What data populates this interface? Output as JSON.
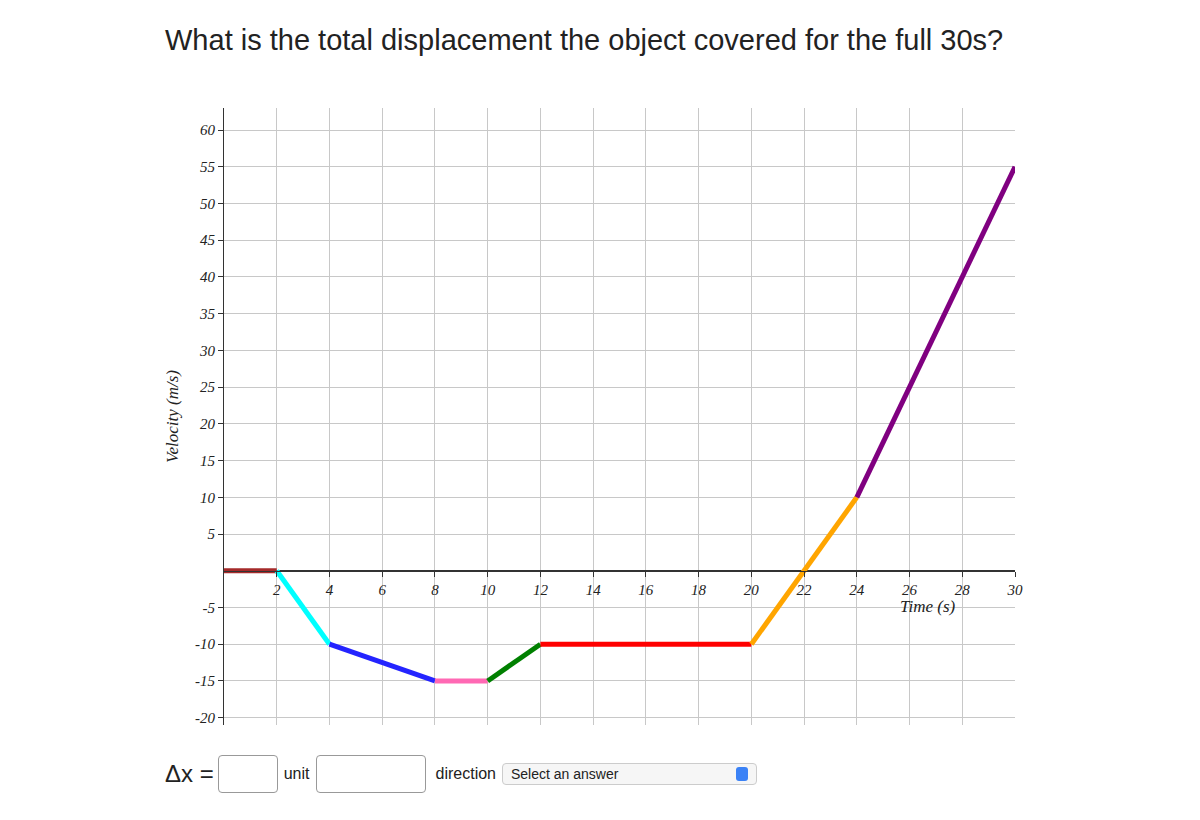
{
  "question": "What is the total displacement the object covered for the full 30s?",
  "answer_form": {
    "delta_label": "Δx =",
    "unit_label": "unit",
    "direction_label": "direction",
    "select_text": "Select an answer"
  },
  "chart_data": {
    "type": "line",
    "x_label": "Time (s)",
    "y_label": "Velocity (m/s)",
    "xlim": [
      0,
      30
    ],
    "ylim": [
      -21,
      63
    ],
    "xticks": [
      2,
      4,
      6,
      8,
      10,
      12,
      14,
      16,
      18,
      20,
      22,
      24,
      26,
      28,
      30
    ],
    "yticks": [
      -20,
      -15,
      -10,
      -5,
      5,
      10,
      15,
      20,
      25,
      30,
      35,
      40,
      45,
      50,
      55,
      60
    ],
    "grid": true,
    "series": [
      {
        "color": "#a52a2a",
        "x": [
          0,
          2
        ],
        "values": [
          0,
          0
        ]
      },
      {
        "color": "#00ffff",
        "x": [
          2,
          4
        ],
        "values": [
          0,
          -10
        ]
      },
      {
        "color": "#2424ff",
        "x": [
          4,
          8
        ],
        "values": [
          -10,
          -15
        ]
      },
      {
        "color": "#ff69b4",
        "x": [
          8,
          10
        ],
        "values": [
          -15,
          -15
        ]
      },
      {
        "color": "#008000",
        "x": [
          10,
          12
        ],
        "values": [
          -15,
          -10
        ]
      },
      {
        "color": "#ff0000",
        "x": [
          12,
          20
        ],
        "values": [
          -10,
          -10
        ]
      },
      {
        "color": "#ffa500",
        "x": [
          20,
          24
        ],
        "values": [
          -10,
          10
        ]
      },
      {
        "color": "#800080",
        "x": [
          24,
          30
        ],
        "values": [
          10,
          55
        ]
      }
    ]
  }
}
